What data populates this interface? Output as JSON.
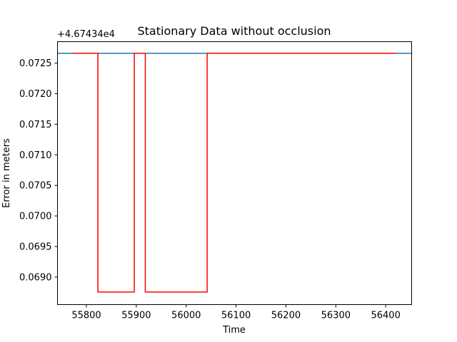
{
  "chart_data": {
    "type": "line",
    "title": "Stationary Data without occlusion",
    "xlabel": "Time",
    "ylabel": "Error in meters",
    "y_offset_label": "+4.67434e4",
    "xlim": [
      55742,
      56452
    ],
    "ylim": [
      0.06855,
      0.07285
    ],
    "x_ticks": [
      55800,
      55900,
      56000,
      56100,
      56200,
      56300,
      56400
    ],
    "x_tick_labels": [
      "55800",
      "55900",
      "56000",
      "56100",
      "56200",
      "56300",
      "56400"
    ],
    "y_ticks": [
      0.069,
      0.0695,
      0.07,
      0.0705,
      0.071,
      0.0715,
      0.072,
      0.0725
    ],
    "y_tick_labels": [
      "0.0690",
      "0.0695",
      "0.0700",
      "0.0705",
      "0.0710",
      "0.0715",
      "0.0720",
      "0.0725"
    ],
    "grid": false,
    "series": [
      {
        "color": "#1f77b4",
        "kind": "horizontal-line",
        "y": 0.07266
      },
      {
        "color": "#ff0000",
        "kind": "line",
        "points": [
          [
            55773,
            0.07266
          ],
          [
            55823,
            0.07266
          ],
          [
            55823,
            0.068755
          ],
          [
            55896,
            0.068755
          ],
          [
            55896,
            0.07266
          ],
          [
            55918,
            0.07266
          ],
          [
            55918,
            0.068755
          ],
          [
            56042,
            0.068755
          ],
          [
            56042,
            0.07266
          ],
          [
            56422,
            0.07266
          ]
        ]
      }
    ]
  }
}
